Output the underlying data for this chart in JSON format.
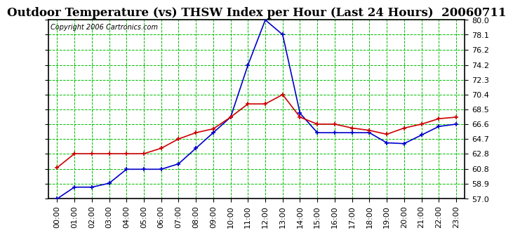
{
  "title": "Outdoor Temperature (vs) THSW Index per Hour (Last 24 Hours)  20060711",
  "copyright": "Copyright 2006 Cartronics.com",
  "ylim": [
    57.0,
    80.0
  ],
  "yticks": [
    57.0,
    58.9,
    60.8,
    62.8,
    64.7,
    66.6,
    68.5,
    70.4,
    72.3,
    74.2,
    76.2,
    78.1,
    80.0
  ],
  "hours": [
    0,
    1,
    2,
    3,
    4,
    5,
    6,
    7,
    8,
    9,
    10,
    11,
    12,
    13,
    14,
    15,
    16,
    17,
    18,
    19,
    20,
    21,
    22,
    23
  ],
  "xlabels": [
    "00:00",
    "01:00",
    "02:00",
    "03:00",
    "04:00",
    "05:00",
    "06:00",
    "07:00",
    "08:00",
    "09:00",
    "10:00",
    "11:00",
    "12:00",
    "13:00",
    "14:00",
    "15:00",
    "16:00",
    "17:00",
    "18:00",
    "19:00",
    "20:00",
    "21:00",
    "22:00",
    "23:00"
  ],
  "red_temp": [
    61.0,
    62.8,
    62.8,
    62.8,
    62.8,
    62.8,
    63.5,
    64.7,
    65.5,
    66.0,
    67.5,
    69.2,
    69.2,
    70.4,
    67.5,
    66.6,
    66.6,
    66.1,
    65.8,
    65.3,
    66.1,
    66.6,
    67.3,
    67.5
  ],
  "blue_thsw": [
    57.0,
    58.5,
    58.5,
    59.0,
    60.8,
    60.8,
    60.8,
    61.5,
    63.5,
    65.5,
    67.5,
    74.2,
    80.0,
    78.1,
    68.0,
    65.5,
    65.5,
    65.5,
    65.5,
    64.2,
    64.1,
    65.2,
    66.3,
    66.6
  ],
  "bg_color": "#ffffff",
  "plot_bg_color": "#ffffff",
  "grid_color": "#00bb00",
  "red_color": "#cc0000",
  "blue_color": "#0000cc",
  "title_fontsize": 12,
  "tick_fontsize": 8,
  "copyright_fontsize": 7
}
